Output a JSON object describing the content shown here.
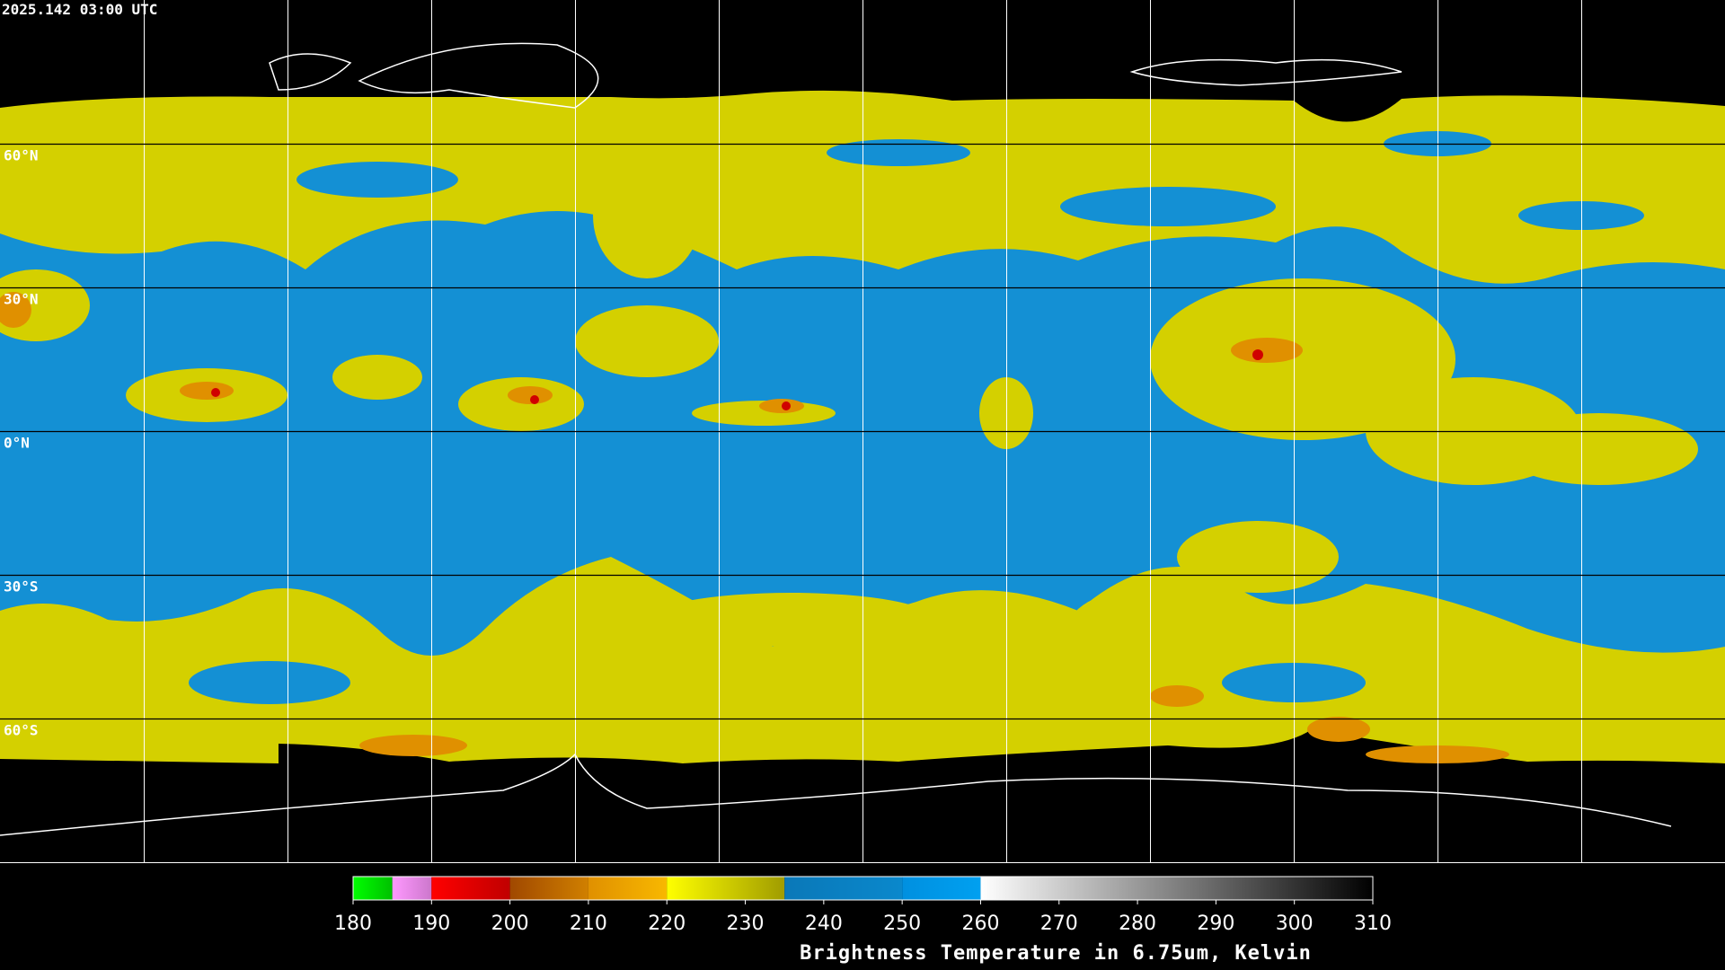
{
  "header": {
    "title": "2025.142 03:00 UTC"
  },
  "map": {
    "lat_lines": [
      {
        "value": 60,
        "label": "60°N"
      },
      {
        "value": 30,
        "label": "30°N"
      },
      {
        "value": 0,
        "label": "0°N"
      },
      {
        "value": -30,
        "label": "30°S"
      },
      {
        "value": -60,
        "label": "60°S"
      }
    ]
  },
  "colorbar": {
    "range": [
      180,
      310
    ],
    "ticks": [
      180,
      190,
      200,
      210,
      220,
      230,
      240,
      250,
      260,
      270,
      280,
      290,
      300,
      310
    ],
    "segments": [
      {
        "from": 180,
        "to": 185,
        "colors": [
          "#00ff00",
          "#00c000"
        ]
      },
      {
        "from": 185,
        "to": 190,
        "colors": [
          "#ff99ff",
          "#cc77cc"
        ]
      },
      {
        "from": 190,
        "to": 200,
        "colors": [
          "#ff0000",
          "#c00000"
        ]
      },
      {
        "from": 200,
        "to": 210,
        "colors": [
          "#a04800",
          "#d08000"
        ]
      },
      {
        "from": 210,
        "to": 220,
        "colors": [
          "#e09000",
          "#f8b800"
        ]
      },
      {
        "from": 220,
        "to": 235,
        "colors": [
          "#ffff00",
          "#a09c00"
        ]
      },
      {
        "from": 235,
        "to": 250,
        "colors": [
          "#0a78b8",
          "#0a88cc"
        ]
      },
      {
        "from": 250,
        "to": 260,
        "colors": [
          "#0090e0",
          "#00a0f0"
        ]
      },
      {
        "from": 260,
        "to": 310,
        "colors": [
          "#ffffff",
          "#000000"
        ]
      }
    ],
    "label": "Brightness Temperature in 6.75um, Kelvin"
  }
}
